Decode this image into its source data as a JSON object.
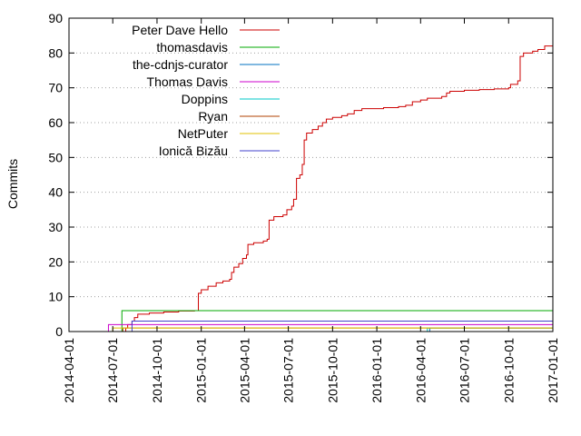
{
  "chart_data": {
    "type": "line",
    "title": "",
    "xlabel": "",
    "ylabel": "Commits",
    "xlim": [
      "2014-04-01",
      "2017-01-01"
    ],
    "ylim": [
      0,
      90
    ],
    "y_ticks": [
      0,
      10,
      20,
      30,
      40,
      50,
      60,
      70,
      80,
      90
    ],
    "x_ticks": [
      "2014-04-01",
      "2014-07-01",
      "2014-10-01",
      "2015-01-01",
      "2015-04-01",
      "2015-07-01",
      "2015-10-01",
      "2016-01-01",
      "2016-04-01",
      "2016-07-01",
      "2016-10-01",
      "2017-01-01"
    ],
    "grid": "horizontal-dotted",
    "legend_position": "top-left",
    "series": [
      {
        "name": "Peter Dave Hello",
        "color": "#cc0000",
        "points": [
          [
            "2014-07-15",
            0
          ],
          [
            "2014-07-28",
            1
          ],
          [
            "2014-08-01",
            2
          ],
          [
            "2014-08-10",
            3
          ],
          [
            "2014-08-15",
            4
          ],
          [
            "2014-08-22",
            5
          ],
          [
            "2014-09-15",
            5.3
          ],
          [
            "2014-10-15",
            5.6
          ],
          [
            "2014-11-15",
            5.9
          ],
          [
            "2014-12-18",
            6
          ],
          [
            "2014-12-26",
            11
          ],
          [
            "2015-01-01",
            12
          ],
          [
            "2015-01-15",
            13
          ],
          [
            "2015-02-01",
            14
          ],
          [
            "2015-02-15",
            14.5
          ],
          [
            "2015-03-01",
            15
          ],
          [
            "2015-03-05",
            17
          ],
          [
            "2015-03-10",
            18.5
          ],
          [
            "2015-03-20",
            19.5
          ],
          [
            "2015-03-28",
            21
          ],
          [
            "2015-04-05",
            22
          ],
          [
            "2015-04-08",
            25
          ],
          [
            "2015-04-20",
            25.5
          ],
          [
            "2015-05-10",
            26
          ],
          [
            "2015-05-18",
            26.5
          ],
          [
            "2015-05-22",
            32
          ],
          [
            "2015-06-01",
            33
          ],
          [
            "2015-06-20",
            33.5
          ],
          [
            "2015-06-28",
            35
          ],
          [
            "2015-07-08",
            36
          ],
          [
            "2015-07-12",
            38
          ],
          [
            "2015-07-18",
            44
          ],
          [
            "2015-07-25",
            45
          ],
          [
            "2015-07-30",
            48
          ],
          [
            "2015-08-03",
            55
          ],
          [
            "2015-08-08",
            57
          ],
          [
            "2015-08-20",
            58
          ],
          [
            "2015-09-01",
            59
          ],
          [
            "2015-09-10",
            60
          ],
          [
            "2015-09-18",
            61
          ],
          [
            "2015-10-01",
            61.5
          ],
          [
            "2015-10-20",
            62
          ],
          [
            "2015-11-01",
            62.5
          ],
          [
            "2015-11-15",
            63.5
          ],
          [
            "2015-12-01",
            64
          ],
          [
            "2016-01-15",
            64.3
          ],
          [
            "2016-02-15",
            64.6
          ],
          [
            "2016-03-01",
            65
          ],
          [
            "2016-03-15",
            66
          ],
          [
            "2016-04-01",
            66.5
          ],
          [
            "2016-04-15",
            67
          ],
          [
            "2016-05-01",
            67
          ],
          [
            "2016-05-15",
            67.5
          ],
          [
            "2016-05-25",
            68.5
          ],
          [
            "2016-06-01",
            69
          ],
          [
            "2016-07-01",
            69.3
          ],
          [
            "2016-08-01",
            69.5
          ],
          [
            "2016-09-01",
            69.7
          ],
          [
            "2016-10-01",
            70
          ],
          [
            "2016-10-05",
            71
          ],
          [
            "2016-10-20",
            72
          ],
          [
            "2016-10-25",
            79
          ],
          [
            "2016-11-01",
            80
          ],
          [
            "2016-11-20",
            80.5
          ],
          [
            "2016-12-01",
            81
          ],
          [
            "2016-12-15",
            82
          ],
          [
            "2017-01-01",
            83
          ]
        ]
      },
      {
        "name": "thomasdavis",
        "color": "#00aa00",
        "points": [
          [
            "2014-07-18",
            0
          ],
          [
            "2014-07-20",
            6
          ],
          [
            "2017-01-01",
            6
          ]
        ]
      },
      {
        "name": "the-cdnjs-curator",
        "color": "#0070c0",
        "points": [
          [
            "2016-04-10",
            0
          ],
          [
            "2016-04-20",
            1
          ],
          [
            "2017-01-01",
            1
          ]
        ]
      },
      {
        "name": "Thomas Davis",
        "color": "#cc00cc",
        "points": [
          [
            "2014-06-20",
            0
          ],
          [
            "2014-06-22",
            2
          ],
          [
            "2017-01-01",
            2
          ]
        ]
      },
      {
        "name": "Doppins",
        "color": "#00c8c8",
        "points": [
          [
            "2016-04-10",
            0
          ],
          [
            "2016-04-15",
            1
          ],
          [
            "2017-01-01",
            1
          ]
        ]
      },
      {
        "name": "Ryan",
        "color": "#b04000",
        "points": [
          [
            "2014-07-20",
            0
          ],
          [
            "2014-07-22",
            1
          ],
          [
            "2017-01-01",
            1
          ]
        ]
      },
      {
        "name": "NetPuter",
        "color": "#e0c000",
        "points": [
          [
            "2014-06-28",
            0
          ],
          [
            "2014-07-01",
            1
          ],
          [
            "2017-01-01",
            1
          ]
        ]
      },
      {
        "name": "Ionică Bizău",
        "color": "#4040cc",
        "points": [
          [
            "2014-07-25",
            0
          ],
          [
            "2014-08-10",
            3
          ],
          [
            "2017-01-01",
            3
          ]
        ]
      }
    ]
  }
}
